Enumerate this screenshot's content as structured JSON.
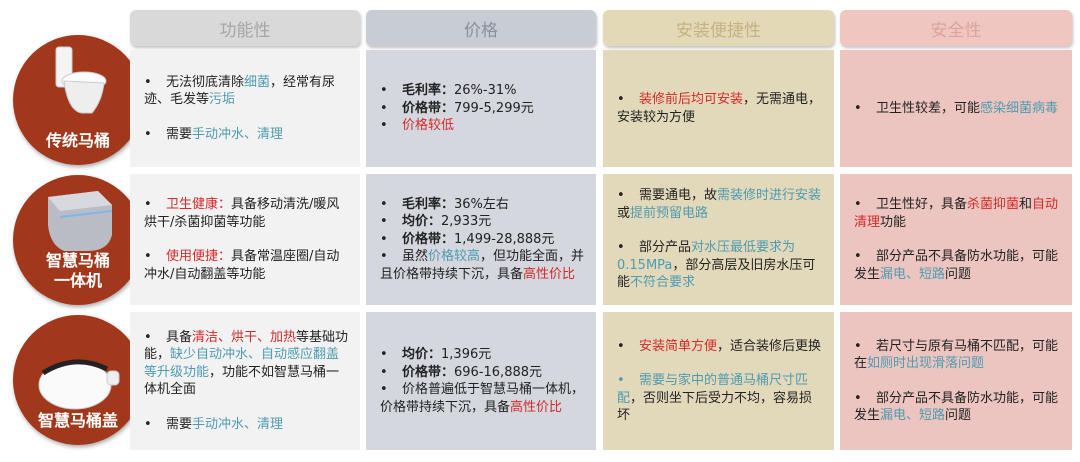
{
  "headers": [
    "功能性",
    "价格",
    "安装便捷性",
    "安全性"
  ],
  "colors": {
    "accent_red": "#d42a2a",
    "accent_teal": "#4f9bb0",
    "circle": "#a2381b"
  },
  "rows": [
    {
      "label": [
        "传统马桶"
      ],
      "icon": "traditional-toilet-icon",
      "cells": [
        {
          "gap": true,
          "bullets": [
            [
              {
                "t": "无法彻底清除"
              },
              {
                "t": "细菌",
                "c": "teal"
              },
              {
                "t": "，经常有尿迹、毛发等"
              },
              {
                "t": "污垢",
                "c": "teal"
              }
            ],
            [
              {
                "t": "需要"
              },
              {
                "t": "手动冲水、清理",
                "c": "teal"
              }
            ]
          ]
        },
        {
          "gap": false,
          "bullets": [
            [
              {
                "t": "毛利率：",
                "c": "b"
              },
              {
                "t": "26%-31%"
              }
            ],
            [
              {
                "t": "价格带：",
                "c": "b"
              },
              {
                "t": "799-5,299元"
              }
            ],
            [
              {
                "t": "价格较低",
                "c": "red"
              }
            ]
          ]
        },
        {
          "gap": true,
          "bullets": [
            [
              {
                "t": "装修前后均可安装",
                "c": "red"
              },
              {
                "t": "，无需通电，安装较为方便"
              }
            ]
          ]
        },
        {
          "gap": true,
          "bullets": [
            [
              {
                "t": "卫生性较差，可能"
              },
              {
                "t": "感染细菌病毒",
                "c": "teal"
              }
            ]
          ]
        }
      ]
    },
    {
      "label": [
        "智慧马桶",
        "一体机"
      ],
      "icon": "smart-toilet-icon",
      "cells": [
        {
          "gap": true,
          "bullets": [
            [
              {
                "t": "卫生健康：",
                "c": "red"
              },
              {
                "t": "具备移动清洗/暖风烘干/杀菌抑菌等功能"
              }
            ],
            [
              {
                "t": "使用便捷：",
                "c": "red"
              },
              {
                "t": "具备常温座圈/自动冲水/自动翻盖等功能"
              }
            ]
          ]
        },
        {
          "gap": false,
          "bullets": [
            [
              {
                "t": "毛利率：",
                "c": "b"
              },
              {
                "t": "36%左右"
              }
            ],
            [
              {
                "t": "均价：",
                "c": "b"
              },
              {
                "t": "2,933元"
              }
            ],
            [
              {
                "t": "价格带：",
                "c": "b"
              },
              {
                "t": "1,499-28,888元"
              }
            ],
            [
              {
                "t": "虽然"
              },
              {
                "t": "价格较高",
                "c": "teal"
              },
              {
                "t": "，但功能全面，并且价格带持续下沉，具备"
              },
              {
                "t": "高性价比",
                "c": "red"
              }
            ]
          ]
        },
        {
          "gap": true,
          "bullets": [
            [
              {
                "t": "需要通电，故"
              },
              {
                "t": "需装修时进行安装",
                "c": "teal"
              },
              {
                "t": "或"
              },
              {
                "t": "提前预留电路",
                "c": "teal"
              }
            ],
            [
              {
                "t": "部分产品"
              },
              {
                "t": "对水压最低要求为0.15MPa",
                "c": "teal"
              },
              {
                "t": "，部分高层及旧房水压可能"
              },
              {
                "t": "不符合要求",
                "c": "teal"
              }
            ]
          ]
        },
        {
          "gap": true,
          "bullets": [
            [
              {
                "t": "卫生性好，具备"
              },
              {
                "t": "杀菌抑菌",
                "c": "red"
              },
              {
                "t": "和"
              },
              {
                "t": "自动清理",
                "c": "red"
              },
              {
                "t": "功能"
              }
            ],
            [
              {
                "t": "部分产品不具备防水功能，可能发生"
              },
              {
                "t": "漏电、短路",
                "c": "teal"
              },
              {
                "t": "问题"
              }
            ]
          ]
        }
      ]
    },
    {
      "label": [
        "智慧马桶盖"
      ],
      "icon": "smart-toilet-seat-icon",
      "cells": [
        {
          "gap": true,
          "bullets": [
            [
              {
                "t": "具备"
              },
              {
                "t": "清洁、烘干、加热",
                "c": "red"
              },
              {
                "t": "等基础功能，"
              },
              {
                "t": "缺少自动冲水、自动感应翻盖等升级功能",
                "c": "teal"
              },
              {
                "t": "，功能不如智慧马桶一体机全面"
              }
            ],
            [
              {
                "t": "需要"
              },
              {
                "t": "手动冲水、清理",
                "c": "teal"
              }
            ]
          ]
        },
        {
          "gap": false,
          "bullets": [
            [
              {
                "t": "均价：",
                "c": "b"
              },
              {
                "t": "1,396元"
              }
            ],
            [
              {
                "t": "价格带：",
                "c": "b"
              },
              {
                "t": "696-16,888元"
              }
            ],
            [
              {
                "t": "价格普遍低于智慧马桶一体机，价格带持续下沉，具备"
              },
              {
                "t": "高性价比",
                "c": "red"
              }
            ]
          ]
        },
        {
          "gap": true,
          "bullets": [
            [
              {
                "t": "安装简单方便",
                "c": "red"
              },
              {
                "t": "，适合装修后更换"
              }
            ],
            [
              {
                "t": "需要与家中的普通马桶尺寸匹配",
                "c": "teal"
              },
              {
                "t": "，否则坐下后受力不均，容易损坏"
              }
            ]
          ]
        },
        {
          "gap": true,
          "bullets": [
            [
              {
                "t": "若尺寸与原有马桶不匹配，可能在"
              },
              {
                "t": "如厕时出现滑落问题",
                "c": "teal"
              }
            ],
            [
              {
                "t": "部分产品不具备防水功能，可能发生"
              },
              {
                "t": "漏电、短路",
                "c": "teal"
              },
              {
                "t": "问题"
              }
            ]
          ]
        }
      ]
    }
  ]
}
